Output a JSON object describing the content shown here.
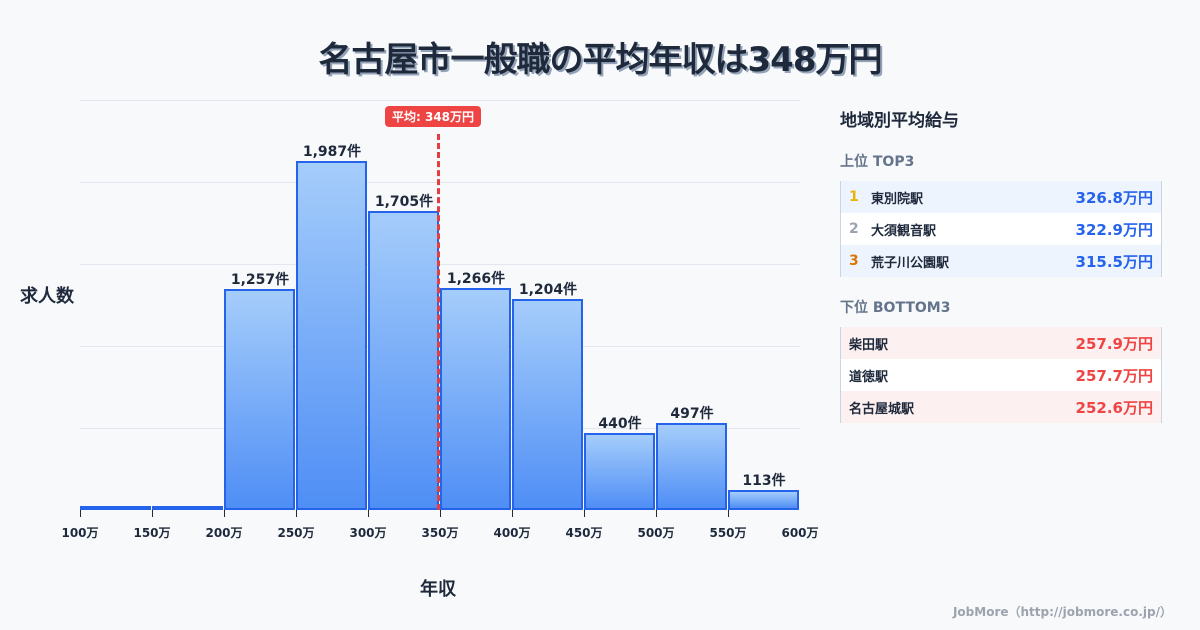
{
  "title": "名古屋市一般職の平均年収は348万円",
  "chart_data": {
    "type": "bar",
    "title": "名古屋市一般職の平均年収は348万円",
    "xlabel": "年収",
    "ylabel": "求人数",
    "categories": [
      "100-150万",
      "150-200万",
      "200-250万",
      "250-300万",
      "300-350万",
      "350-400万",
      "400-450万",
      "450-500万",
      "500-550万",
      "550-600万"
    ],
    "values": [
      10,
      17,
      1257,
      1987,
      1705,
      1266,
      1204,
      440,
      497,
      113
    ],
    "value_labels": [
      "",
      "",
      "1,257件",
      "1,987件",
      "1,705件",
      "1,266件",
      "1,204件",
      "440件",
      "497件",
      "113件"
    ],
    "x_ticks": [
      "100万",
      "150万",
      "200万",
      "250万",
      "300万",
      "350万",
      "400万",
      "450万",
      "500万",
      "550万",
      "600万"
    ],
    "average_line": {
      "value": 348,
      "label": "平均: 348万円"
    },
    "grid": true
  },
  "panel": {
    "title": "地域別平均給与",
    "top_title": "上位 TOP3",
    "top": [
      {
        "rank": "1",
        "name": "東別院駅",
        "value": "326.8万円",
        "rank_color": "#eab308"
      },
      {
        "rank": "2",
        "name": "大須観音駅",
        "value": "322.9万円",
        "rank_color": "#9ca3af"
      },
      {
        "rank": "3",
        "name": "荒子川公園駅",
        "value": "315.5万円",
        "rank_color": "#d97706"
      }
    ],
    "bottom_title": "下位 BOTTOM3",
    "bottom": [
      {
        "name": "柴田駅",
        "value": "257.9万円"
      },
      {
        "name": "道徳駅",
        "value": "257.7万円"
      },
      {
        "name": "名古屋城駅",
        "value": "252.6万円"
      }
    ]
  },
  "footer": "JobMore（http://jobmore.co.jp/）"
}
